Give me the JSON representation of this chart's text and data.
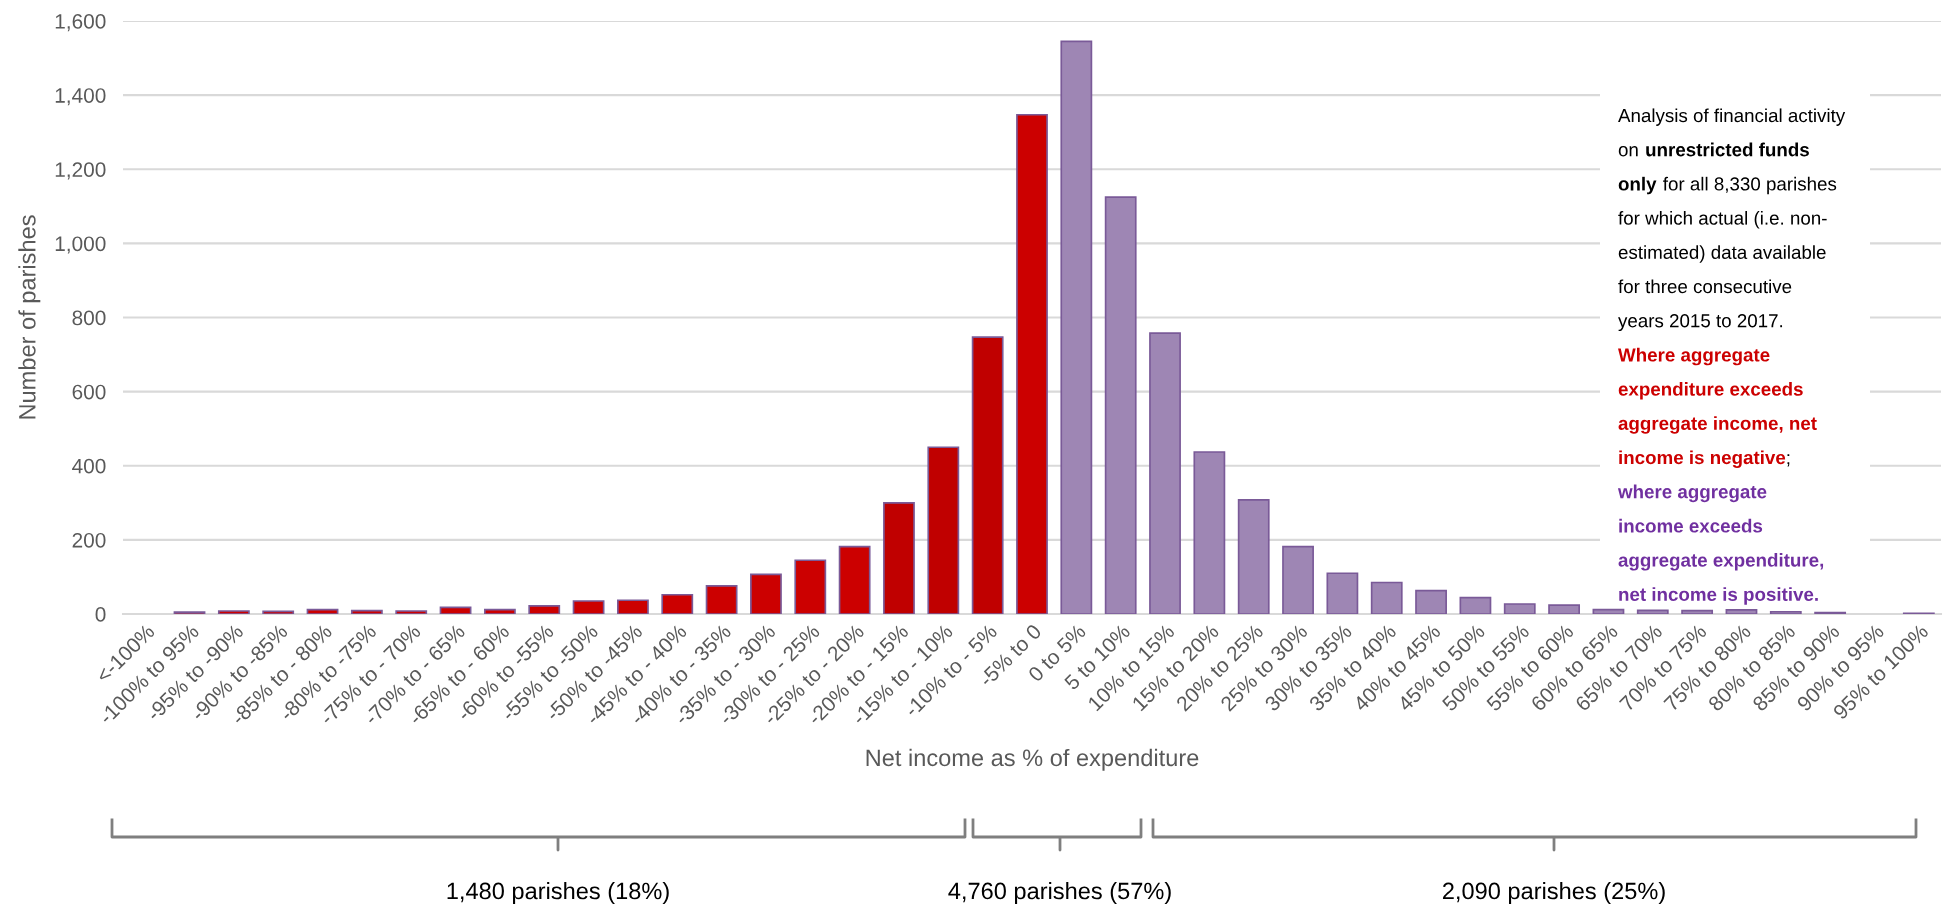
{
  "chart_data": {
    "type": "bar",
    "xlabel": "Net income as % of expenditure",
    "ylabel": "Number of parishes",
    "categories": [
      "<-100%",
      "-100% to 95%",
      "-95% to -90%",
      "-90% to -85%",
      "-85% to - 80%",
      "-80% to -75%",
      "-75% to - 70%",
      "-70% to - 65%",
      "-65% to - 60%",
      "-60% to -55%",
      "-55% to -50%",
      "-50% to -45%",
      "-45% to - 40%",
      "-40% to - 35%",
      "-35% to - 30%",
      "-30% to - 25%",
      "-25% to - 20%",
      "-20% to - 15%",
      "-15% to - 10%",
      "-10% to - 5%",
      "-5% to 0",
      "0 to 5%",
      "5 to 10%",
      "10% to 15%",
      "15% to 20%",
      "20% to 25%",
      "25% to 30%",
      "30% to 35%",
      "35% to 40%",
      "40% to 45%",
      "45% to 50%",
      "50% to 55%",
      "55% to 60%",
      "60% to 65%",
      "65% to 70%",
      "70% to 75%",
      "75% to 80%",
      "80% to 85%",
      "85% to 90%",
      "90% to 95%",
      "95% to 100%"
    ],
    "values": [
      0,
      5,
      8,
      7,
      12,
      9,
      8,
      18,
      12,
      22,
      35,
      37,
      52,
      76,
      107,
      145,
      182,
      300,
      450,
      747,
      1347,
      1545,
      1125,
      758,
      437,
      308,
      182,
      110,
      85,
      63,
      44,
      27,
      24,
      12,
      10,
      9,
      11,
      6,
      4,
      0,
      2
    ],
    "colors": [
      "#cc0000",
      "#cc0000",
      "#cc0000",
      "#cc0000",
      "#cc0000",
      "#cc0000",
      "#cc0000",
      "#cc0000",
      "#cc0000",
      "#cc0000",
      "#cc0000",
      "#cc0000",
      "#cc0000",
      "#cc0000",
      "#cc0000",
      "#cc0000",
      "#cc0000",
      "#c00000",
      "#c00000",
      "#c00000",
      "#cc0000",
      "#9e86b4",
      "#9e86b4",
      "#9e86b4",
      "#9e86b4",
      "#9e86b4",
      "#9e86b4",
      "#9e86b4",
      "#9e86b4",
      "#9e86b4",
      "#9e86b4",
      "#9e86b4",
      "#9e86b4",
      "#9e86b4",
      "#9e86b4",
      "#9e86b4",
      "#9e86b4",
      "#9e86b4",
      "#9e86b4",
      "#9e86b4",
      "#9e86b4"
    ],
    "ylim": [
      0,
      1600
    ],
    "yticks": [
      {
        "value": 0,
        "label": "0"
      },
      {
        "value": 200,
        "label": "200"
      },
      {
        "value": 400,
        "label": "400"
      },
      {
        "value": 600,
        "label": "600"
      },
      {
        "value": 800,
        "label": "800"
      },
      {
        "value": 1000,
        "label": "1,000"
      },
      {
        "value": 1200,
        "label": "1,200"
      },
      {
        "value": 1400,
        "label": "1,400"
      },
      {
        "value": 1600,
        "label": "1,600"
      }
    ],
    "grid": "y",
    "legend": false,
    "annotations": [
      "Analysis of financial activity",
      "on",
      "unrestricted funds",
      "only",
      "for all 8,330 parishes",
      "for which actual (i.e. non-",
      "estimated) data available",
      "for three consecutive",
      "years 2015 to 2017.",
      "Where aggregate",
      "expenditure exceeds",
      "aggregate income, net",
      "income is negative",
      ";",
      "where aggregate",
      "income exceeds",
      "aggregate expenditure,",
      "net income is positive.",
      "1,480 parishes (18%)",
      "4,760 parishes (57%)",
      "2,090 parishes (25%)"
    ]
  }
}
